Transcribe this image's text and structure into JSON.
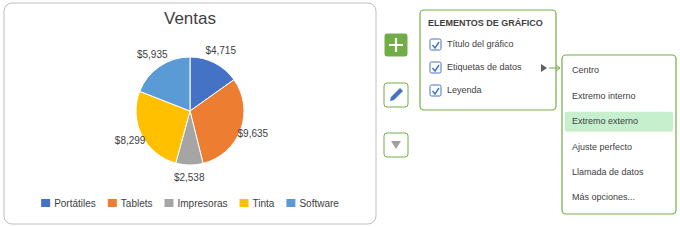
{
  "chart_data": {
    "type": "pie",
    "title": "Ventas",
    "categories": [
      "Portátiles",
      "Tablets",
      "Impresoras",
      "Tinta",
      "Software"
    ],
    "values": [
      4715,
      9635,
      2538,
      8299,
      5935
    ],
    "value_labels": [
      "$4,715",
      "$9,635",
      "$2,538",
      "$8,299",
      "$5,935"
    ],
    "colors": [
      "#4472C4",
      "#ED7D31",
      "#A5A5A5",
      "#FFC000",
      "#5B9BD5"
    ],
    "data_labels": true,
    "legend": "bottom",
    "annotations": [
      {
        "text": "ELEMENTOS DE GRÁFICO"
      },
      {
        "text": "Título del gráfico"
      },
      {
        "text": "Etiquetas de datos"
      },
      {
        "text": "Leyenda"
      },
      {
        "text": "Centro"
      },
      {
        "text": "Extremo interno"
      },
      {
        "text": "Extremo externo",
        "color": "#C6EFCE"
      },
      {
        "text": "Ajuste perfecto"
      },
      {
        "text": "Llamada de datos"
      },
      {
        "text": "Más opciones..."
      }
    ]
  }
}
